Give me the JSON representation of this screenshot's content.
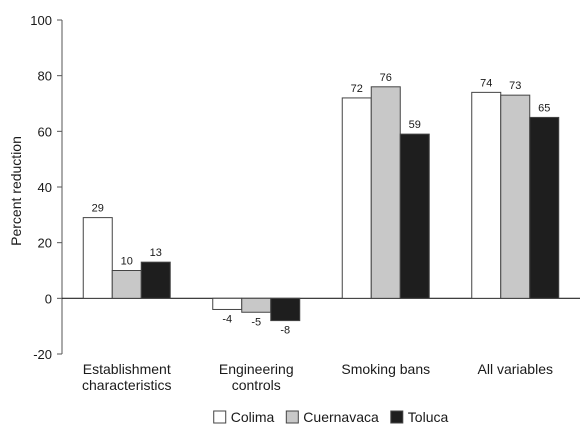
{
  "chart_data": {
    "type": "bar",
    "title": "",
    "xlabel": "",
    "ylabel": "Percent reduction",
    "ylim": [
      -20,
      100
    ],
    "yticks": [
      -20,
      0,
      20,
      40,
      60,
      80,
      100
    ],
    "grid": false,
    "legend_position": "bottom",
    "categories": [
      [
        "Establishment",
        "characteristics"
      ],
      [
        "Engineering",
        "controls"
      ],
      [
        "Smoking bans"
      ],
      [
        "All variables"
      ]
    ],
    "series": [
      {
        "name": "Colima",
        "color": "#ffffff",
        "values": [
          29,
          -4,
          72,
          74
        ],
        "labels": [
          "29",
          "-4",
          "72",
          "74"
        ]
      },
      {
        "name": "Cuernavaca",
        "color": "#c8c8c8",
        "values": [
          10,
          -5,
          76,
          73
        ],
        "labels": [
          "10",
          "-5",
          "76",
          "73"
        ]
      },
      {
        "name": "Toluca",
        "color": "#1e1e1e",
        "values": [
          13,
          -8,
          59,
          65
        ],
        "labels": [
          "13",
          "-8",
          "59",
          "65"
        ]
      }
    ]
  }
}
